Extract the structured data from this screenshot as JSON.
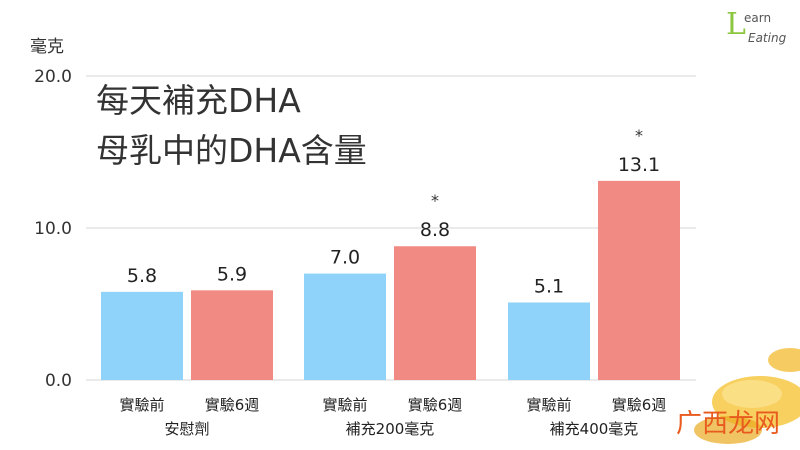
{
  "chart_data": {
    "type": "bar",
    "title_lines": [
      "每天補充DHA",
      "母乳中的DHA含量"
    ],
    "ylabel": "毫克",
    "ylim": [
      0,
      20
    ],
    "yticks": [
      "0.0",
      "10.0",
      "20.0"
    ],
    "ytick_values": [
      0,
      10,
      20
    ],
    "grid": true,
    "groups": [
      {
        "name": "安慰劑",
        "bars": [
          {
            "category": "實驗前",
            "value": 5.8,
            "label": "5.8",
            "star": "",
            "color": "#8fd3fb"
          },
          {
            "category": "實驗6週",
            "value": 5.9,
            "label": "5.9",
            "star": "",
            "color": "#f08a82"
          }
        ]
      },
      {
        "name": "補充200毫克",
        "bars": [
          {
            "category": "實驗前",
            "value": 7.0,
            "label": "7.0",
            "star": "",
            "color": "#8fd3fb"
          },
          {
            "category": "實驗6週",
            "value": 8.8,
            "label": "8.8",
            "star": "*",
            "color": "#f08a82"
          }
        ]
      },
      {
        "name": "補充400毫克",
        "bars": [
          {
            "category": "實驗前",
            "value": 5.1,
            "label": "5.1",
            "star": "",
            "color": "#8fd3fb"
          },
          {
            "category": "實驗6週",
            "value": 13.1,
            "label": "13.1",
            "star": "*",
            "color": "#f08a82"
          }
        ]
      }
    ]
  },
  "logo": {
    "line1": "earn",
    "line2": "Eating",
    "letter": "L"
  },
  "watermark": "广西龙网"
}
